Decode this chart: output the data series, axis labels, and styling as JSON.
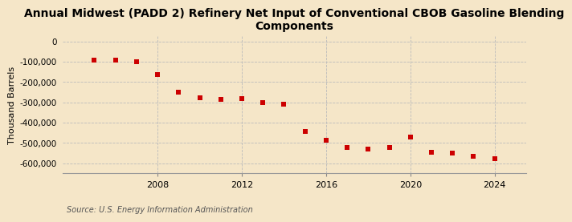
{
  "title": "Annual Midwest (PADD 2) Refinery Net Input of Conventional CBOB Gasoline Blending\nComponents",
  "ylabel": "Thousand Barrels",
  "source": "Source: U.S. Energy Information Administration",
  "background_color": "#f5e6c8",
  "plot_bg_color": "#f5e6c8",
  "years": [
    2005,
    2006,
    2007,
    2008,
    2009,
    2010,
    2011,
    2012,
    2013,
    2014,
    2015,
    2016,
    2017,
    2018,
    2019,
    2020,
    2021,
    2022,
    2023,
    2024
  ],
  "values": [
    -93000,
    -93000,
    -100000,
    -163000,
    -248000,
    -277000,
    -285000,
    -280000,
    -300000,
    -310000,
    -445000,
    -485000,
    -520000,
    -530000,
    -520000,
    -470000,
    -545000,
    -550000,
    -565000,
    -578000
  ],
  "marker_color": "#cc0000",
  "marker_size": 4,
  "ylim": [
    -650000,
    25000
  ],
  "yticks": [
    0,
    -100000,
    -200000,
    -300000,
    -400000,
    -500000,
    -600000
  ],
  "xlim": [
    2003.5,
    2025.5
  ],
  "xticks": [
    2008,
    2012,
    2016,
    2020,
    2024
  ],
  "grid_color": "#bbbbbb",
  "title_fontsize": 10
}
